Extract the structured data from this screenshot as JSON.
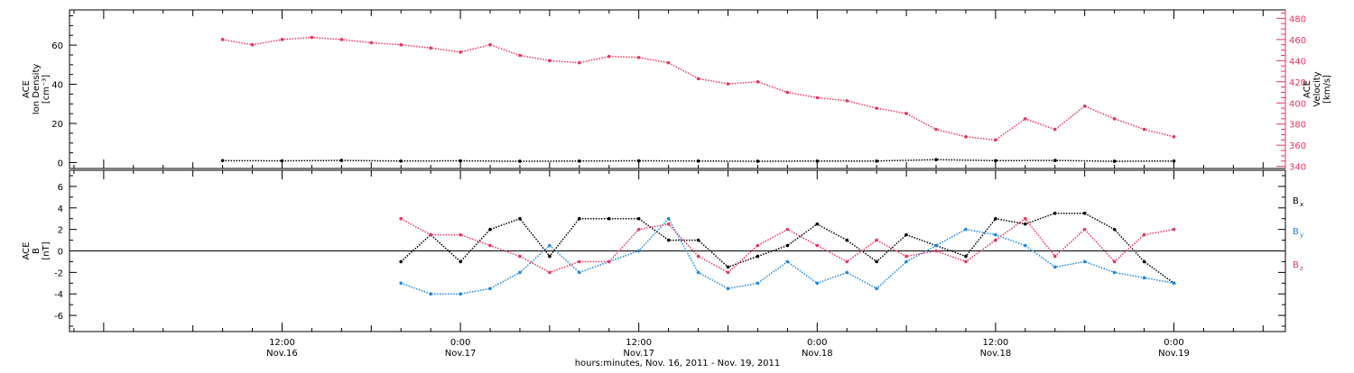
{
  "chart_data": [
    {
      "type": "scatter",
      "panel": "top",
      "ylabel_lines": [
        "ACE",
        "Ion Density",
        "[cm⁻³]"
      ],
      "ylim": [
        -3,
        78
      ],
      "yticks": [
        0,
        20,
        40,
        60
      ],
      "right_axis": {
        "ylabel_lines": [
          "ACE",
          "Velocity",
          "[km/s]"
        ],
        "ylim": [
          338,
          488
        ],
        "yticks": [
          340,
          360,
          380,
          400,
          420,
          440,
          460,
          480
        ],
        "color": "#e8335f"
      },
      "series": [
        {
          "name": "Ion Density",
          "axis": "left",
          "color": "#000000",
          "x": [
            8,
            12,
            16,
            20,
            24,
            28,
            32,
            36,
            40,
            44,
            48,
            52,
            56,
            60,
            64,
            68,
            72
          ],
          "y": [
            1.0,
            0.9,
            1.1,
            0.8,
            0.9,
            0.7,
            0.8,
            0.9,
            0.8,
            0.7,
            0.8,
            0.8,
            1.5,
            1.0,
            1.1,
            0.7,
            0.8
          ]
        },
        {
          "name": "Velocity",
          "axis": "right",
          "color": "#e8335f",
          "x": [
            8,
            10,
            12,
            14,
            16,
            18,
            20,
            22,
            24,
            26,
            28,
            30,
            32,
            34,
            36,
            38,
            40,
            42,
            44,
            46,
            48,
            50,
            52,
            54,
            56,
            58,
            60,
            62,
            64,
            66,
            68,
            70,
            72
          ],
          "y": [
            460,
            455,
            460,
            462,
            460,
            457,
            455,
            452,
            448,
            455,
            445,
            440,
            438,
            444,
            443,
            438,
            423,
            418,
            420,
            410,
            405,
            402,
            395,
            390,
            375,
            368,
            365,
            385,
            375,
            397,
            385,
            375,
            368
          ]
        }
      ]
    },
    {
      "type": "scatter",
      "panel": "bottom",
      "ylabel_lines": [
        "ACE",
        "B",
        "[nT]"
      ],
      "ylim": [
        -7.5,
        7.5
      ],
      "yticks": [
        -6,
        -4,
        -2,
        0,
        2,
        4,
        6
      ],
      "zero_line": true,
      "series": [
        {
          "name": "Bx",
          "label_main": "B",
          "label_sub": "x",
          "color": "#000000",
          "x": [
            20,
            22,
            24,
            26,
            28,
            30,
            32,
            34,
            36,
            38,
            40,
            42,
            44,
            46,
            48,
            50,
            52,
            54,
            56,
            58,
            60,
            62,
            64,
            66,
            68,
            70,
            72
          ],
          "y": [
            -1.0,
            1.5,
            -1.0,
            2.0,
            3.0,
            -0.5,
            3.0,
            3.0,
            3.0,
            1.0,
            1.0,
            -1.5,
            -0.5,
            0.5,
            2.5,
            1.0,
            -1.0,
            1.5,
            0.5,
            -0.5,
            3.0,
            2.5,
            3.5,
            3.5,
            2.0,
            -1.0,
            -3.0
          ]
        },
        {
          "name": "By",
          "label_main": "B",
          "label_sub": "y",
          "color": "#1a87e2",
          "x": [
            20,
            22,
            24,
            26,
            28,
            30,
            32,
            34,
            36,
            38,
            40,
            42,
            44,
            46,
            48,
            50,
            52,
            54,
            56,
            58,
            60,
            62,
            64,
            66,
            68,
            70,
            72
          ],
          "y": [
            -3.0,
            -4.0,
            -4.0,
            -3.5,
            -2.0,
            0.5,
            -2.0,
            -1.0,
            0.0,
            3.0,
            -2.0,
            -3.5,
            -3.0,
            -1.0,
            -3.0,
            -2.0,
            -3.5,
            -1.0,
            0.5,
            2.0,
            1.5,
            0.5,
            -1.5,
            -1.0,
            -2.0,
            -2.5,
            -3.0
          ]
        },
        {
          "name": "Bz",
          "label_main": "B",
          "label_sub": "z",
          "color": "#e8335f",
          "x": [
            20,
            22,
            24,
            26,
            28,
            30,
            32,
            34,
            36,
            38,
            40,
            42,
            44,
            46,
            48,
            50,
            52,
            54,
            56,
            58,
            60,
            62,
            64,
            66,
            68,
            70,
            72
          ],
          "y": [
            3.0,
            1.5,
            1.5,
            0.5,
            -0.5,
            -2.0,
            -1.0,
            -1.0,
            2.0,
            2.5,
            -0.5,
            -2.0,
            0.5,
            2.0,
            0.5,
            -1.0,
            1.0,
            -0.5,
            0.0,
            -1.0,
            1.0,
            3.0,
            -0.5,
            2.0,
            -1.0,
            1.5,
            2.0
          ]
        }
      ]
    }
  ],
  "x_axis": {
    "xlim": [
      -2.3,
      79.5
    ],
    "xlabel": "hours:minutes, Nov. 16, 2011 - Nov. 19, 2011",
    "ticks": [
      {
        "x": 12,
        "time": "12:00",
        "date": "Nov.16"
      },
      {
        "x": 24,
        "time": "0:00",
        "date": "Nov.17"
      },
      {
        "x": 36,
        "time": "12:00",
        "date": "Nov.17"
      },
      {
        "x": 48,
        "time": "0:00",
        "date": "Nov.18"
      },
      {
        "x": 60,
        "time": "12:00",
        "date": "Nov.18"
      },
      {
        "x": 72,
        "time": "0:00",
        "date": "Nov.19"
      }
    ]
  }
}
